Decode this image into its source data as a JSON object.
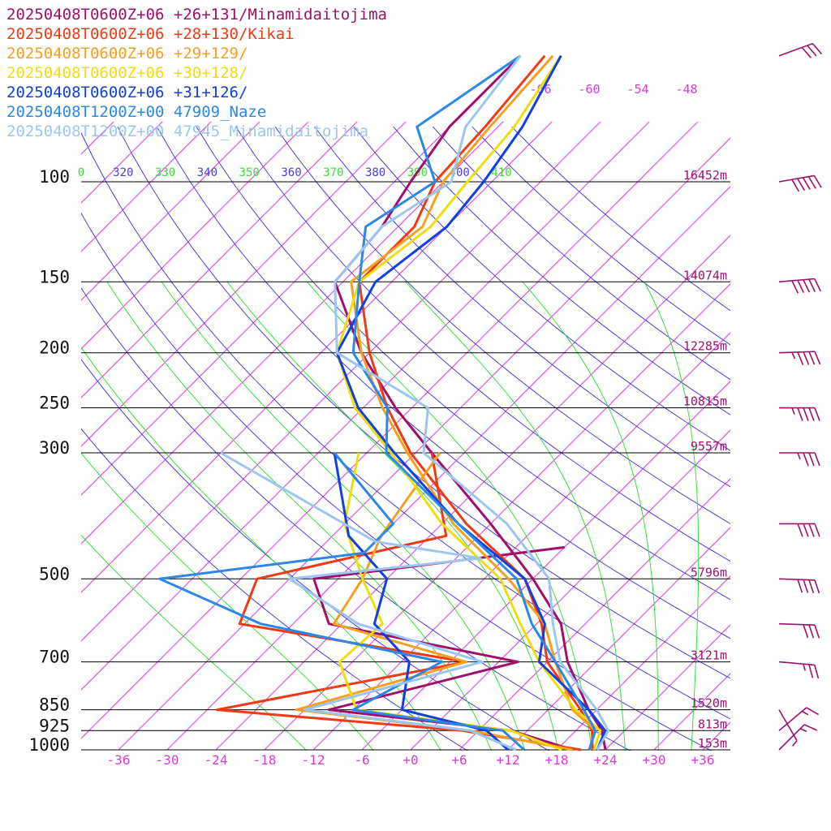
{
  "colors": {
    "isobar": "#000000",
    "isotherm": "#d63bd6",
    "dry_adiabat": "#4a3ee0",
    "moist_adiabat": "#38e038",
    "height_label": "#a01070",
    "temp_tick": "#d63bd6"
  },
  "chart_data": {
    "type": "line",
    "title": "",
    "xlabel": "",
    "ylabel": "",
    "pressure_levels": [
      {
        "p": 100,
        "label": "100",
        "height": "16452m"
      },
      {
        "p": 150,
        "label": "150",
        "height": "14074m"
      },
      {
        "p": 200,
        "label": "200",
        "height": "12285m"
      },
      {
        "p": 250,
        "label": "250",
        "height": "10815m"
      },
      {
        "p": 300,
        "label": "300",
        "height": "9557m"
      },
      {
        "p": 500,
        "label": "500",
        "height": "5796m"
      },
      {
        "p": 700,
        "label": "700",
        "height": "3121m"
      },
      {
        "p": 850,
        "label": "850",
        "height": "1520m"
      },
      {
        "p": 925,
        "label": "925",
        "height": "813m"
      },
      {
        "p": 1000,
        "label": "1000",
        "height": "153m"
      }
    ],
    "temperature_ticks": [
      "-36",
      "-30",
      "-24",
      "-18",
      "-12",
      "-6",
      "+0",
      "+6",
      "+12",
      "+18",
      "+24",
      "+30",
      "+36"
    ],
    "upper_isotherm_labels": [
      "-66",
      "-60",
      "-54",
      "-48"
    ],
    "theta_labels": [
      {
        "text": "0",
        "color": "#38e038"
      },
      {
        "text": "320",
        "color": "#4a3ee0"
      },
      {
        "text": "330",
        "color": "#38e038"
      },
      {
        "text": "340",
        "color": "#4a3ee0"
      },
      {
        "text": "350",
        "color": "#38e038"
      },
      {
        "text": "360",
        "color": "#4a3ee0"
      },
      {
        "text": "370",
        "color": "#38e038"
      },
      {
        "text": "380",
        "color": "#4a3ee0"
      },
      {
        "text": "390",
        "color": "#38e038"
      },
      {
        "text": "400",
        "color": "#4a3ee0"
      },
      {
        "text": "410",
        "color": "#38e038"
      }
    ],
    "series": [
      {
        "name": "20250408T0600Z+06 +26+131/Minamidaitojima",
        "color": "#a0106a",
        "temp": [
          [
            1000,
            24
          ],
          [
            925,
            21.2
          ],
          [
            850,
            17
          ],
          [
            700,
            8.5
          ],
          [
            600,
            3
          ],
          [
            500,
            -6
          ],
          [
            400,
            -18
          ],
          [
            300,
            -34
          ],
          [
            250,
            -44
          ],
          [
            200,
            -55
          ],
          [
            150,
            -67
          ],
          [
            120,
            -68
          ],
          [
            100,
            -70
          ],
          [
            80,
            -72
          ],
          [
            60,
            -72
          ]
        ],
        "dew": [
          [
            1000,
            20
          ],
          [
            925,
            10
          ],
          [
            850,
            -15
          ],
          [
            700,
            2.4
          ],
          [
            600,
            -25.6
          ],
          [
            500,
            -33
          ],
          [
            440,
            -6
          ],
          [
            300,
            null
          ]
        ]
      },
      {
        "name": "20250408T0600Z+06 +28+130/Kikai",
        "color": "#f03a16",
        "temp": [
          [
            1000,
            22.4
          ],
          [
            925,
            20
          ],
          [
            850,
            16
          ],
          [
            700,
            6
          ],
          [
            600,
            0.6
          ],
          [
            500,
            -7
          ],
          [
            400,
            -21
          ],
          [
            300,
            -36.6
          ],
          [
            250,
            -45
          ],
          [
            200,
            -54
          ],
          [
            150,
            -64
          ],
          [
            120,
            -64
          ],
          [
            100,
            -67
          ],
          [
            80,
            -67.6
          ],
          [
            60,
            -69
          ]
        ],
        "dew": [
          [
            1000,
            21
          ],
          [
            925,
            4
          ],
          [
            850,
            -28.8
          ],
          [
            700,
            -4
          ],
          [
            600,
            -36.6
          ],
          [
            500,
            -40
          ],
          [
            420,
            -22
          ],
          [
            300,
            -34
          ]
        ]
      },
      {
        "name": "20250408T0600Z+06 +29+129/",
        "color": "#f5a020",
        "temp": [
          [
            1000,
            22
          ],
          [
            925,
            20.4
          ],
          [
            850,
            15
          ],
          [
            700,
            7
          ],
          [
            600,
            1
          ],
          [
            500,
            -9
          ],
          [
            400,
            -22.6
          ],
          [
            300,
            -37
          ],
          [
            250,
            -45.6
          ],
          [
            200,
            -55
          ],
          [
            150,
            -65
          ],
          [
            120,
            -63
          ],
          [
            100,
            -66
          ],
          [
            80,
            -67
          ],
          [
            60,
            -68
          ]
        ],
        "dew": [
          [
            1000,
            20
          ],
          [
            925,
            5
          ],
          [
            850,
            -19
          ],
          [
            700,
            -4
          ],
          [
            600,
            -25
          ],
          [
            500,
            -27
          ],
          [
            420,
            -30
          ],
          [
            300,
            -33
          ]
        ]
      },
      {
        "name": "20250408T0600Z+06 +30+128/",
        "color": "#eedd10",
        "temp": [
          [
            1000,
            22.6
          ],
          [
            925,
            21
          ],
          [
            850,
            15.4
          ],
          [
            700,
            5
          ],
          [
            600,
            -2
          ],
          [
            500,
            -10
          ],
          [
            400,
            -24
          ],
          [
            300,
            -39
          ],
          [
            250,
            -49
          ],
          [
            200,
            -58
          ],
          [
            150,
            -64
          ],
          [
            120,
            -62
          ],
          [
            100,
            -63
          ],
          [
            80,
            -64
          ],
          [
            60,
            -67
          ]
        ],
        "dew": [
          [
            1000,
            18.6
          ],
          [
            925,
            10
          ],
          [
            850,
            -11.6
          ],
          [
            700,
            -19.6
          ],
          [
            600,
            -19
          ],
          [
            500,
            -27
          ],
          [
            400,
            -36
          ],
          [
            300,
            -43
          ]
        ]
      },
      {
        "name": "20250408T0600Z+06 +31+126/",
        "color": "#1040e0",
        "temp": [
          [
            1000,
            23
          ],
          [
            925,
            21.6
          ],
          [
            850,
            17
          ],
          [
            700,
            5
          ],
          [
            600,
            1
          ],
          [
            500,
            -7
          ],
          [
            400,
            -22
          ],
          [
            300,
            -38.6
          ],
          [
            250,
            -48.6
          ],
          [
            200,
            -58
          ],
          [
            150,
            -62
          ],
          [
            120,
            -60
          ],
          [
            100,
            -61
          ],
          [
            80,
            -63
          ],
          [
            60,
            -67
          ]
        ],
        "dew": [
          [
            1000,
            12
          ],
          [
            925,
            7
          ],
          [
            850,
            -6
          ],
          [
            700,
            -11
          ],
          [
            600,
            -20
          ],
          [
            500,
            -24
          ],
          [
            420,
            -34
          ],
          [
            300,
            -46
          ]
        ]
      },
      {
        "name": "20250408T1200Z+00 47909_Naze",
        "color": "#2a88e8",
        "temp": [
          [
            1000,
            22
          ],
          [
            925,
            20.4
          ],
          [
            850,
            16.4
          ],
          [
            700,
            7
          ],
          [
            600,
            -0.6
          ],
          [
            500,
            -8
          ],
          [
            400,
            -22
          ],
          [
            300,
            -39.6
          ],
          [
            250,
            -45
          ],
          [
            200,
            -56
          ],
          [
            150,
            -64
          ],
          [
            120,
            -70
          ],
          [
            100,
            -67
          ],
          [
            80,
            -76
          ],
          [
            60,
            -72
          ]
        ],
        "dew": [
          [
            1000,
            14
          ],
          [
            925,
            9
          ],
          [
            850,
            -12
          ],
          [
            700,
            -7
          ],
          [
            600,
            -34
          ],
          [
            500,
            -52
          ],
          [
            450,
            -30
          ],
          [
            400,
            -30
          ],
          [
            300,
            -46
          ]
        ]
      },
      {
        "name": "20250408T1200Z+00 47945_Minamidaitojima",
        "color": "#9cc6f2",
        "temp": [
          [
            1000,
            23
          ],
          [
            925,
            22
          ],
          [
            850,
            18
          ],
          [
            700,
            7.6
          ],
          [
            600,
            2
          ],
          [
            500,
            -4
          ],
          [
            400,
            -16
          ],
          [
            300,
            -35
          ],
          [
            250,
            -40
          ],
          [
            200,
            -58
          ],
          [
            150,
            -67
          ],
          [
            120,
            -68
          ],
          [
            100,
            -65
          ],
          [
            80,
            -70
          ],
          [
            60,
            -72
          ]
        ],
        "dew": [
          [
            1000,
            13
          ],
          [
            925,
            5
          ],
          [
            850,
            -18
          ],
          [
            700,
            -2
          ],
          [
            600,
            -22
          ],
          [
            500,
            -36
          ],
          [
            460,
            -15
          ],
          [
            430,
            -30
          ],
          [
            300,
            -60
          ]
        ]
      }
    ],
    "wind_barbs": [
      {
        "p": 60,
        "dir": 250,
        "kt": 30
      },
      {
        "p": 100,
        "dir": 260,
        "kt": 50
      },
      {
        "p": 150,
        "dir": 265,
        "kt": 50
      },
      {
        "p": 200,
        "dir": 268,
        "kt": 45
      },
      {
        "p": 250,
        "dir": 270,
        "kt": 45
      },
      {
        "p": 300,
        "dir": 270,
        "kt": 35
      },
      {
        "p": 400,
        "dir": 270,
        "kt": 40
      },
      {
        "p": 500,
        "dir": 272,
        "kt": 40
      },
      {
        "p": 600,
        "dir": 272,
        "kt": 30
      },
      {
        "p": 700,
        "dir": 275,
        "kt": 25
      },
      {
        "p": 850,
        "dir": 330,
        "kt": 5
      },
      {
        "p": 925,
        "dir": 230,
        "kt": 15
      },
      {
        "p": 1000,
        "dir": 225,
        "kt": 15
      }
    ]
  }
}
